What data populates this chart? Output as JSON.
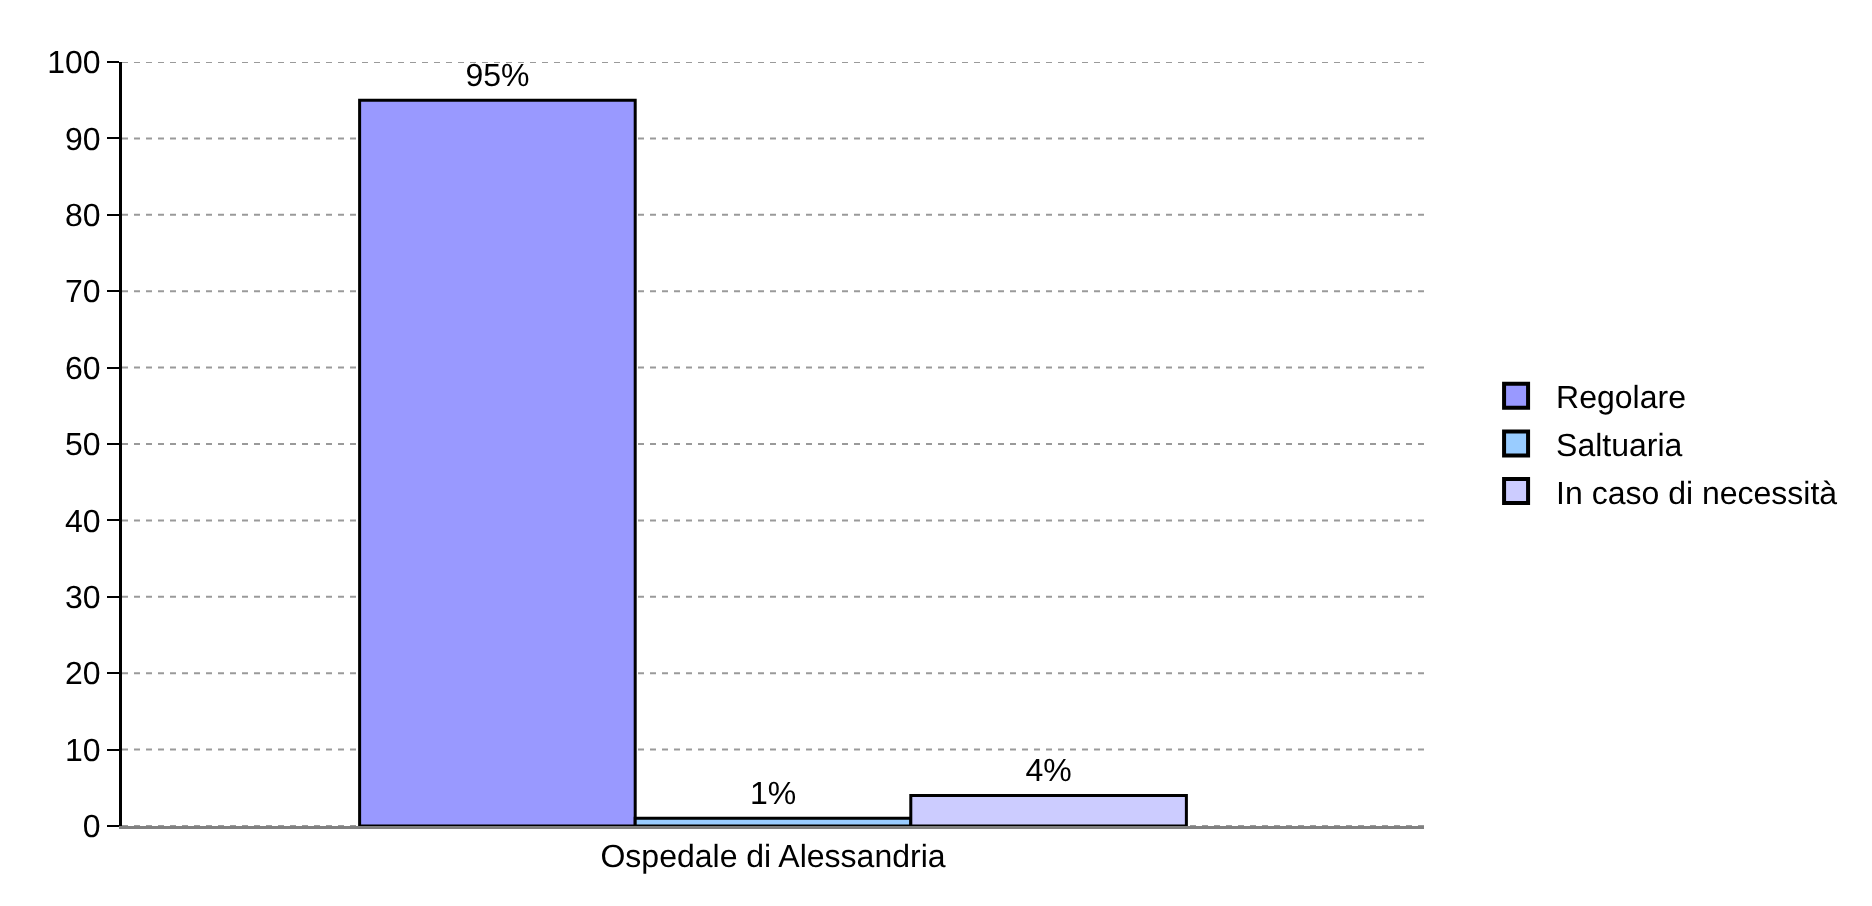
{
  "chart_data": {
    "type": "bar",
    "categories": [
      "Ospedale di Alessandria"
    ],
    "series": [
      {
        "name": "Regolare",
        "color": "#9999ff",
        "values": [
          95
        ],
        "value_labels": [
          "95%"
        ]
      },
      {
        "name": "Saltuaria",
        "color": "#99ccff",
        "values": [
          1
        ],
        "value_labels": [
          "1%"
        ]
      },
      {
        "name": "In caso di necessità",
        "color": "#ccccff",
        "values": [
          4
        ],
        "value_labels": [
          "4%"
        ]
      }
    ],
    "ylim": [
      0,
      100
    ],
    "yticks": [
      0,
      10,
      20,
      30,
      40,
      50,
      60,
      70,
      80,
      90,
      100
    ],
    "grid": "y",
    "legend": "right"
  }
}
